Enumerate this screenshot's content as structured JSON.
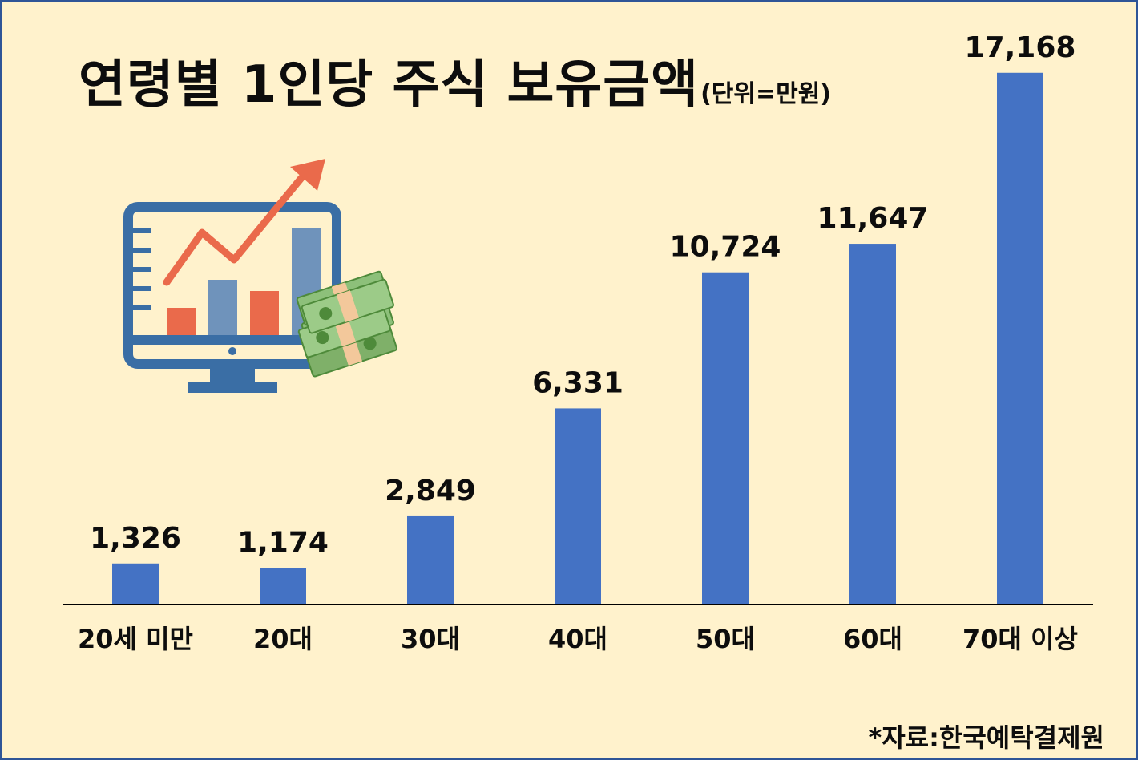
{
  "title": "연령별 1인당 주식 보유금액",
  "unit_note": "(단위=만원)",
  "source": "*자료:한국예탁결제원",
  "colors": {
    "bar": "#4472c4",
    "background": "#fff2cc",
    "border": "#2f5597",
    "axis": "#000000"
  },
  "illustration": {
    "icons": [
      "monitor-chart-icon",
      "trend-arrow-icon",
      "money-stack-icon"
    ]
  },
  "chart_data": {
    "type": "bar",
    "categories": [
      "20세 미만",
      "20대",
      "30대",
      "40대",
      "50대",
      "60대",
      "70대 이상"
    ],
    "values": [
      1326,
      1174,
      2849,
      6331,
      10724,
      11647,
      17168
    ],
    "value_labels": [
      "1,326",
      "1,174",
      "2,849",
      "6,331",
      "10,724",
      "11,647",
      "17,168"
    ],
    "title": "연령별 1인당 주식 보유금액",
    "xlabel": "",
    "ylabel": "",
    "ylim": [
      0,
      19000
    ],
    "grid": false,
    "legend": "none"
  }
}
